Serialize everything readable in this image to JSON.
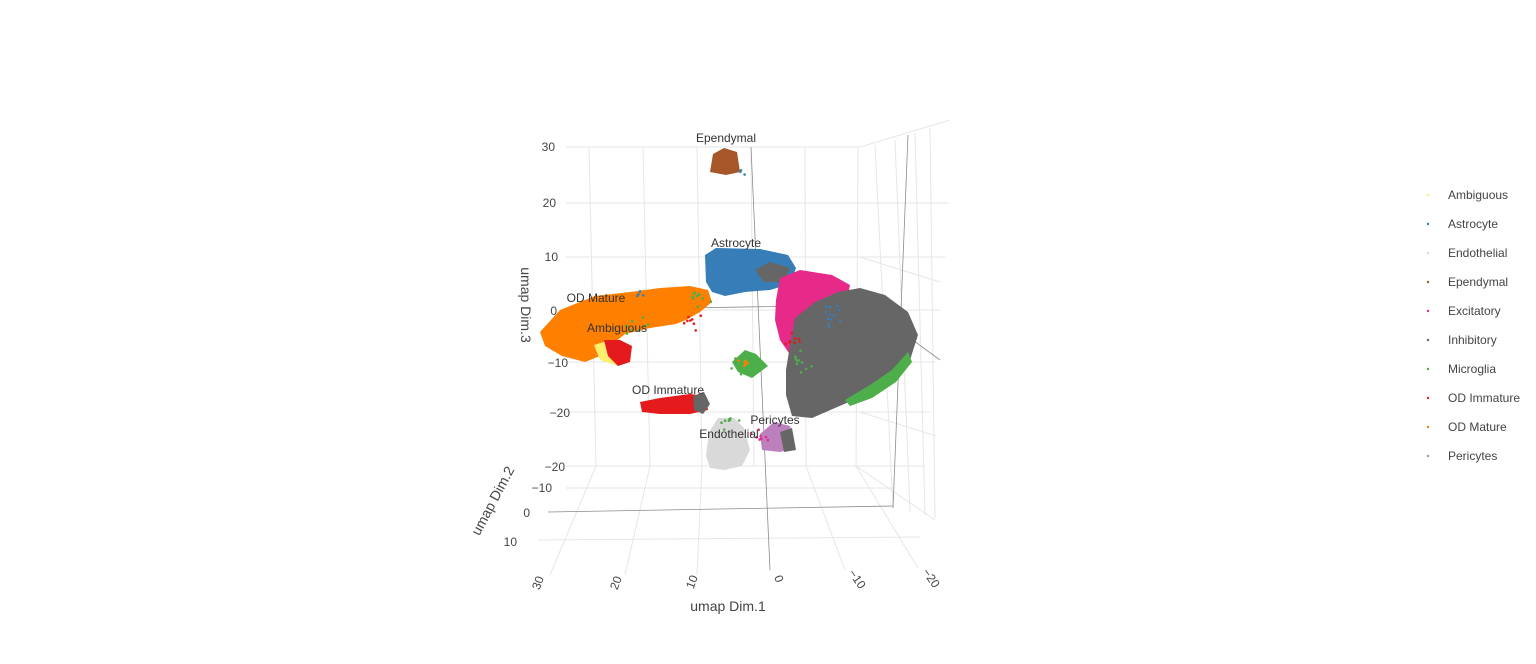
{
  "chart_data": {
    "type": "scatter",
    "title": "",
    "xlabel": "umap Dim.1",
    "ylabel": "umap Dim.2",
    "zlabel": "umap Dim.3",
    "x_ticks": [
      "30",
      "20",
      "10",
      "0",
      "−10",
      "−20"
    ],
    "y_ticks": [
      "−10",
      "0",
      "10"
    ],
    "z_ticks": [
      "30",
      "20",
      "10",
      "0",
      "−10",
      "−20"
    ],
    "z_tick_extra": "−20",
    "xlim": [
      -22,
      32
    ],
    "ylim": [
      -12,
      12
    ],
    "zlim": [
      -22,
      32
    ],
    "grid": true,
    "legend_position": "right",
    "series": [
      {
        "name": "Ambiguous",
        "color": "#ffed6f",
        "label": "Ambiguous",
        "centroid": [
          27,
          -6
        ]
      },
      {
        "name": "Astrocyte",
        "color": "#377eb8",
        "label": "Astrocyte",
        "centroid": [
          4,
          12
        ]
      },
      {
        "name": "Endothelial",
        "color": "#d9d9d9",
        "label": "Endothelial",
        "centroid": [
          3,
          -26
        ]
      },
      {
        "name": "Ependymal",
        "color": "#a65628",
        "label": "Ependymal",
        "centroid": [
          5,
          27
        ]
      },
      {
        "name": "Excitatory",
        "color": "#e7298a",
        "label": "",
        "centroid": [
          -6,
          3
        ]
      },
      {
        "name": "Inhibitory",
        "color": "#666666",
        "label": "",
        "centroid": [
          -12,
          -3
        ]
      },
      {
        "name": "Microglia",
        "color": "#4daf4a",
        "label": "",
        "centroid": [
          2,
          -10
        ]
      },
      {
        "name": "OD Immature",
        "color": "#e41a1c",
        "label": "OD Immature",
        "centroid": [
          13,
          -18
        ]
      },
      {
        "name": "OD Mature",
        "color": "#ff7f00",
        "label": "OD Mature",
        "centroid": [
          20,
          0
        ]
      },
      {
        "name": "Pericytes",
        "color": "#bc80bd",
        "label": "Pericytes",
        "centroid": [
          -3,
          -23
        ]
      }
    ]
  },
  "legend": {
    "items": [
      "Ambiguous",
      "Astrocyte",
      "Endothelial",
      "Ependymal",
      "Excitatory",
      "Inhibitory",
      "Microglia",
      "OD Immature",
      "OD Mature",
      "Pericytes"
    ]
  },
  "cluster_labels": {
    "ependymal": "Ependymal",
    "astrocyte": "Astrocyte",
    "od_mature": "OD Mature",
    "ambiguous": "Ambiguous",
    "od_immature": "OD Immature",
    "pericytes": "Pericytes",
    "endothelial": "Endothelial"
  }
}
